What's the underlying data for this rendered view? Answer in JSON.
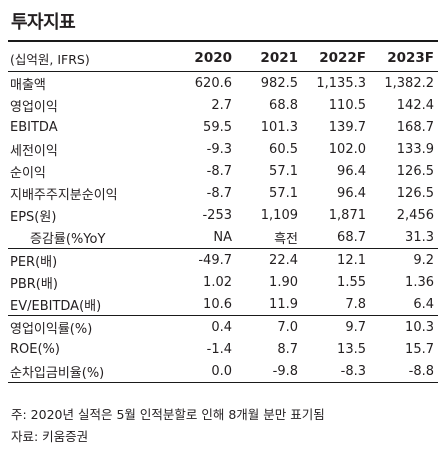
{
  "title": "투자지표",
  "columns": [
    "(십억원, IFRS)",
    "2020",
    "2021",
    "2022F",
    "2023F"
  ],
  "rows": [
    {
      "label": "매출액",
      "values": [
        "620.6",
        "982.5",
        "1,135.3",
        "1,382.2"
      ]
    },
    {
      "label": "영업이익",
      "values": [
        "2.7",
        "68.8",
        "110.5",
        "142.4"
      ]
    },
    {
      "label": "EBITDA",
      "values": [
        "59.5",
        "101.3",
        "139.7",
        "168.7"
      ]
    },
    {
      "label": "세전이익",
      "values": [
        "-9.3",
        "60.5",
        "102.0",
        "133.9"
      ]
    },
    {
      "label": "순이익",
      "values": [
        "-8.7",
        "57.1",
        "96.4",
        "126.5"
      ]
    },
    {
      "label": "지배주주지분순이익",
      "values": [
        "-8.7",
        "57.1",
        "96.4",
        "126.5"
      ]
    },
    {
      "label": "EPS(원)",
      "values": [
        "-253",
        "1,109",
        "1,871",
        "2,456"
      ]
    },
    {
      "label": "증감률(%YoY",
      "values": [
        "NA",
        "흑전",
        "68.7",
        "31.3"
      ]
    },
    {
      "label": "PER(배)",
      "values": [
        "-49.7",
        "22.4",
        "12.1",
        "9.2"
      ]
    },
    {
      "label": "PBR(배)",
      "values": [
        "1.02",
        "1.90",
        "1.55",
        "1.36"
      ]
    },
    {
      "label": "EV/EBITDA(배)",
      "values": [
        "10.6",
        "11.9",
        "7.8",
        "6.4"
      ]
    },
    {
      "label": "영업이익률(%)",
      "values": [
        "0.4",
        "7.0",
        "9.7",
        "10.3"
      ]
    },
    {
      "label": "ROE(%)",
      "values": [
        "-1.4",
        "8.7",
        "13.5",
        "15.7"
      ]
    },
    {
      "label": "순차입금비율(%)",
      "values": [
        "0.0",
        "-9.8",
        "-8.3",
        "-8.8"
      ]
    }
  ],
  "footnote": "주: 2020년 실적은 5월 인적분할로 인해 8개월 분만 표기됨",
  "source": "자료: 키움증권"
}
